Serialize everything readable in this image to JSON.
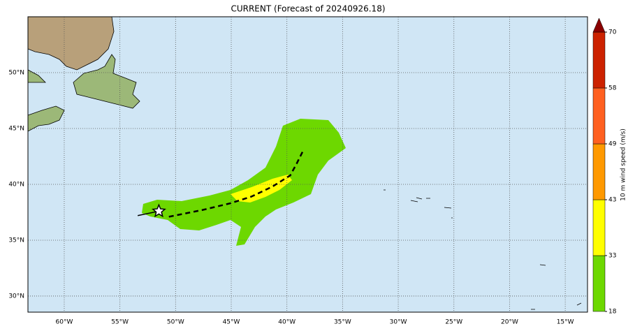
{
  "map": {
    "title": "CURRENT (Forecast of 20240926.18)",
    "xlim": [
      -63.26,
      -13.0
    ],
    "ylim": [
      28.56,
      55.0
    ],
    "xticks": [
      {
        "value": -60,
        "label": "60°W"
      },
      {
        "value": -55,
        "label": "55°W"
      },
      {
        "value": -50,
        "label": "50°W"
      },
      {
        "value": -45,
        "label": "45°W"
      },
      {
        "value": -40,
        "label": "40°W"
      },
      {
        "value": -35,
        "label": "35°W"
      },
      {
        "value": -30,
        "label": "30°W"
      },
      {
        "value": -25,
        "label": "25°W"
      },
      {
        "value": -20,
        "label": "20°W"
      },
      {
        "value": -15,
        "label": "15°W"
      }
    ],
    "yticks": [
      {
        "value": 30,
        "label": "30°N"
      },
      {
        "value": 35,
        "label": "35°N"
      },
      {
        "value": 40,
        "label": "40°N"
      },
      {
        "value": 45,
        "label": "45°N"
      },
      {
        "value": 50,
        "label": "50°N"
      }
    ],
    "grid": true,
    "track": {
      "lon": [
        -53.4,
        -51.5,
        -50.6,
        -47.6,
        -45.1,
        -43.2,
        -41.3,
        -39.7,
        -39.1,
        -38.5
      ],
      "lat": [
        37.2,
        37.6,
        37.1,
        37.7,
        38.3,
        38.9,
        39.8,
        40.8,
        41.9,
        43.1
      ]
    },
    "colorbar": {
      "label": "10 m wind speed (m/s)",
      "ticks": [
        18,
        33,
        43,
        49,
        58,
        70
      ],
      "colors": [
        "#6dd800",
        "#ffff00",
        "#ff9900",
        "#ff6020",
        "#cc2200"
      ],
      "extend_color": "#8b0000"
    }
  }
}
